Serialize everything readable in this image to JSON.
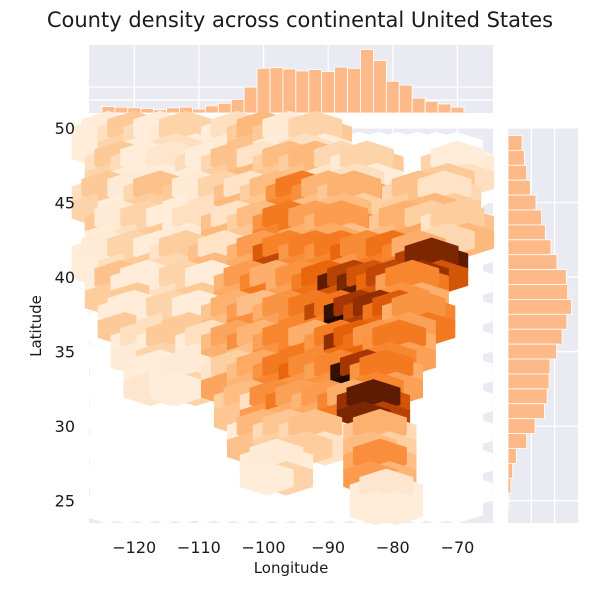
{
  "chart_data": {
    "type": "heatmap",
    "subtype": "jointplot-hexbin",
    "title": "County density across continental United States",
    "xlabel": "Longitude",
    "ylabel": "Latitude",
    "xlim": [
      -127,
      -64.5
    ],
    "ylim": [
      23.5,
      50
    ],
    "xticks": [
      -120,
      -110,
      -100,
      -90,
      -80,
      -70
    ],
    "yticks": [
      25,
      30,
      35,
      40,
      45,
      50
    ],
    "grid": true,
    "colormap": "white-to-orange-to-black",
    "hex_counts": [
      [
        -124,
        49,
        1
      ],
      [
        -120,
        49,
        2
      ],
      [
        -116,
        49,
        1
      ],
      [
        -112,
        49,
        2
      ],
      [
        -104,
        49,
        2
      ],
      [
        -100,
        49,
        3
      ],
      [
        -96,
        49,
        2
      ],
      [
        -92,
        49,
        2
      ],
      [
        -122,
        47,
        2
      ],
      [
        -118,
        47,
        1
      ],
      [
        -114,
        47,
        1
      ],
      [
        -108,
        47,
        1
      ],
      [
        -104,
        47,
        3
      ],
      [
        -100,
        47,
        3
      ],
      [
        -96,
        47,
        4
      ],
      [
        -92,
        47,
        3
      ],
      [
        -88,
        47,
        3
      ],
      [
        -84,
        47,
        2
      ],
      [
        -70,
        47,
        2
      ],
      [
        -124,
        45,
        2
      ],
      [
        -120,
        45,
        2
      ],
      [
        -116,
        45,
        3
      ],
      [
        -110,
        45,
        2
      ],
      [
        -106,
        45,
        2
      ],
      [
        -102,
        45,
        3
      ],
      [
        -98,
        45,
        4
      ],
      [
        -94,
        45,
        6
      ],
      [
        -90,
        45,
        5
      ],
      [
        -86,
        45,
        4
      ],
      [
        -76,
        45,
        3
      ],
      [
        -72,
        45,
        3
      ],
      [
        -122,
        43,
        2
      ],
      [
        -118,
        43,
        2
      ],
      [
        -114,
        43,
        2
      ],
      [
        -110,
        43,
        2
      ],
      [
        -104,
        43,
        3
      ],
      [
        -100,
        43,
        4
      ],
      [
        -96,
        43,
        6
      ],
      [
        -92,
        43,
        6
      ],
      [
        -88,
        43,
        5
      ],
      [
        -78,
        43,
        4
      ],
      [
        -74,
        43,
        4
      ],
      [
        -70,
        43,
        3
      ],
      [
        -124,
        41,
        2
      ],
      [
        -120,
        41,
        2
      ],
      [
        -116,
        41,
        2
      ],
      [
        -112,
        41,
        3
      ],
      [
        -106,
        41,
        3
      ],
      [
        -100,
        41,
        5
      ],
      [
        -96,
        41,
        8
      ],
      [
        -92,
        41,
        7
      ],
      [
        -88,
        41,
        6
      ],
      [
        -84,
        41,
        7
      ],
      [
        -80,
        41,
        7
      ],
      [
        -76,
        41,
        6
      ],
      [
        -74,
        40.5,
        10
      ],
      [
        -122,
        39,
        3
      ],
      [
        -118,
        39,
        2
      ],
      [
        -112,
        39,
        2
      ],
      [
        -108,
        39,
        2
      ],
      [
        -102,
        39,
        5
      ],
      [
        -98,
        39,
        6
      ],
      [
        -94,
        39,
        6
      ],
      [
        -90,
        39,
        7
      ],
      [
        -86,
        39,
        10
      ],
      [
        -83,
        39,
        10
      ],
      [
        -80,
        39,
        8
      ],
      [
        -77,
        39,
        6
      ],
      [
        -120,
        37,
        2
      ],
      [
        -114,
        37,
        2
      ],
      [
        -110,
        37,
        2
      ],
      [
        -104,
        37,
        4
      ],
      [
        -100,
        37,
        5
      ],
      [
        -96,
        37,
        6
      ],
      [
        -92,
        37,
        6
      ],
      [
        -88,
        37,
        8
      ],
      [
        -85,
        37,
        11
      ],
      [
        -82,
        37,
        9
      ],
      [
        -79,
        37,
        8
      ],
      [
        -76,
        37,
        6
      ],
      [
        -118,
        35,
        2
      ],
      [
        -114,
        35,
        2
      ],
      [
        -108,
        35,
        2
      ],
      [
        -104,
        35,
        4
      ],
      [
        -100,
        35,
        5
      ],
      [
        -96,
        35,
        6
      ],
      [
        -92,
        35,
        6
      ],
      [
        -88,
        35,
        7
      ],
      [
        -85,
        35,
        9
      ],
      [
        -82,
        35,
        7
      ],
      [
        -79,
        35,
        6
      ],
      [
        -116,
        33,
        1
      ],
      [
        -112,
        33,
        2
      ],
      [
        -104,
        33,
        4
      ],
      [
        -100,
        33,
        5
      ],
      [
        -96,
        33,
        6
      ],
      [
        -92,
        33,
        7
      ],
      [
        -88,
        33,
        6
      ],
      [
        -84,
        33,
        11
      ],
      [
        -81,
        33,
        6
      ],
      [
        -102,
        31,
        4
      ],
      [
        -98,
        31,
        5
      ],
      [
        -94,
        31,
        6
      ],
      [
        -90,
        31,
        5
      ],
      [
        -86,
        31,
        6
      ],
      [
        -83,
        31,
        10
      ],
      [
        -100,
        29,
        3
      ],
      [
        -96,
        29,
        4
      ],
      [
        -92,
        29,
        3
      ],
      [
        -82,
        29,
        4
      ],
      [
        -98,
        27,
        2
      ],
      [
        -82,
        27,
        5
      ],
      [
        -81,
        25,
        1
      ]
    ],
    "top_histogram": {
      "axis": "Longitude",
      "bins": [
        -124,
        -122,
        -120,
        -118,
        -116,
        -114,
        -112,
        -110,
        -108,
        -106,
        -104,
        -102,
        -100,
        -98,
        -96,
        -94,
        -92,
        -90,
        -88,
        -86,
        -84,
        -82,
        -80,
        -78,
        -76,
        -74,
        -72,
        -70
      ],
      "counts": [
        20,
        18,
        16,
        14,
        10,
        16,
        18,
        12,
        22,
        30,
        42,
        80,
        138,
        140,
        136,
        130,
        134,
        128,
        142,
        138,
        196,
        162,
        98,
        86,
        46,
        36,
        28,
        18
      ]
    },
    "right_histogram": {
      "axis": "Latitude",
      "bins": [
        49,
        48,
        47,
        46,
        45,
        44,
        43,
        42,
        41,
        40,
        39,
        38,
        37,
        36,
        35,
        34,
        33,
        32,
        31,
        30,
        29,
        28,
        27,
        26,
        25
      ],
      "counts": [
        30,
        35,
        40,
        48,
        60,
        72,
        80,
        92,
        105,
        125,
        128,
        136,
        126,
        116,
        104,
        90,
        88,
        84,
        78,
        58,
        40,
        18,
        10,
        6,
        2
      ]
    }
  }
}
